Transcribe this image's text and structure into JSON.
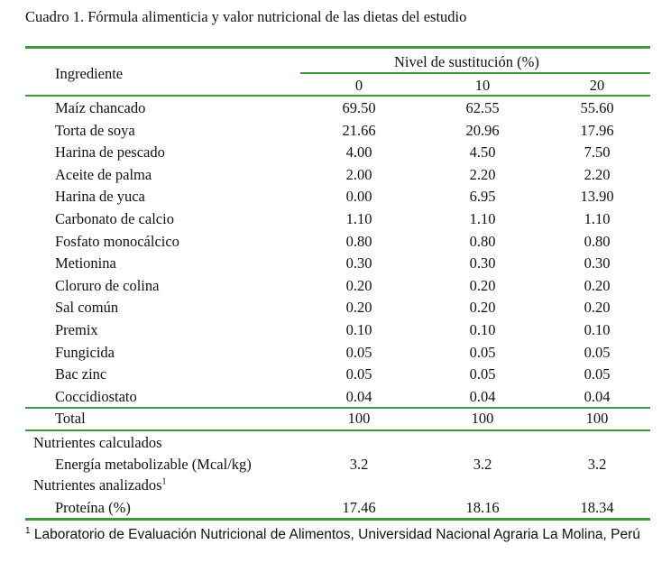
{
  "caption": "Cuadro 1.  Fórmula alimenticia y valor nutricional de las dietas del estudio",
  "table": {
    "col_header": "Ingrediente",
    "group_header": "Nivel de sustitución (%)",
    "levels": [
      "0",
      "10",
      "20"
    ],
    "rows": [
      {
        "name": "Maíz chancado",
        "values": [
          "69.50",
          "62.55",
          "55.60"
        ]
      },
      {
        "name": "Torta de soya",
        "values": [
          "21.66",
          "20.96",
          "17.96"
        ]
      },
      {
        "name": "Harina de pescado",
        "values": [
          "4.00",
          "4.50",
          "7.50"
        ]
      },
      {
        "name": "Aceite de palma",
        "values": [
          "2.00",
          "2.20",
          "2.20"
        ]
      },
      {
        "name": "Harina de yuca",
        "values": [
          "0.00",
          "6.95",
          "13.90"
        ]
      },
      {
        "name": "Carbonato de calcio",
        "values": [
          "1.10",
          "1.10",
          "1.10"
        ]
      },
      {
        "name": "Fosfato monocálcico",
        "values": [
          "0.80",
          "0.80",
          "0.80"
        ]
      },
      {
        "name": "Metionina",
        "values": [
          "0.30",
          "0.30",
          "0.30"
        ]
      },
      {
        "name": "Cloruro de colina",
        "values": [
          "0.20",
          "0.20",
          "0.20"
        ]
      },
      {
        "name": "Sal común",
        "values": [
          "0.20",
          "0.20",
          "0.20"
        ]
      },
      {
        "name": "Premix",
        "values": [
          "0.10",
          "0.10",
          "0.10"
        ]
      },
      {
        "name": "Fungicida",
        "values": [
          "0.05",
          "0.05",
          "0.05"
        ]
      },
      {
        "name": "Bac zinc",
        "values": [
          "0.05",
          "0.05",
          "0.05"
        ]
      },
      {
        "name": "Coccidiostato",
        "values": [
          "0.04",
          "0.04",
          "0.04"
        ]
      }
    ],
    "total": {
      "name": "Total",
      "values": [
        "100",
        "100",
        "100"
      ]
    },
    "calc_heading": "Nutrientes calculados",
    "energy": {
      "name": "Energía metabolizable (Mcal/kg)",
      "values": [
        "3.2",
        "3.2",
        "3.2"
      ]
    },
    "analyzed_heading": "Nutrientes analizados",
    "analyzed_sup": "1",
    "protein": {
      "name": "Proteína (%)",
      "values": [
        "17.46",
        "18.16",
        "18.34"
      ]
    }
  },
  "footnote": {
    "sup": "1",
    "text": " Laboratorio de Evaluación Nutricional de Alimentos, Universidad Nacional Agraria La Molina, Perú"
  },
  "colors": {
    "rule": "#3f9a3f"
  }
}
